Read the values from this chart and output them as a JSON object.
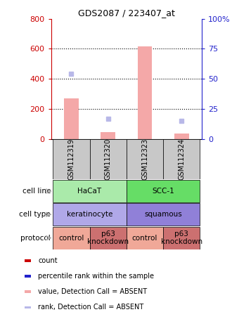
{
  "title": "GDS2087 / 223407_at",
  "samples": [
    "GSM112319",
    "GSM112320",
    "GSM112323",
    "GSM112324"
  ],
  "bar_values": [
    270,
    45,
    615,
    35
  ],
  "rank_values_pct": [
    54,
    17,
    0,
    15
  ],
  "bar_color": "#f4a8a8",
  "rank_color": "#b8b8e8",
  "ylim_left": [
    0,
    800
  ],
  "ylim_right": [
    0,
    100
  ],
  "yticks_left": [
    0,
    200,
    400,
    600,
    800
  ],
  "yticks_right": [
    0,
    25,
    50,
    75,
    100
  ],
  "ytick_labels_left": [
    "0",
    "200",
    "400",
    "600",
    "800"
  ],
  "ytick_labels_right": [
    "0",
    "25",
    "50",
    "75",
    "100%"
  ],
  "left_axis_color": "#cc0000",
  "right_axis_color": "#2222cc",
  "sample_box_color": "#c8c8c8",
  "cell_line_groups": [
    {
      "label": "HaCaT",
      "color": "#aaeaaa",
      "span": [
        0,
        2
      ]
    },
    {
      "label": "SCC-1",
      "color": "#66dd66",
      "span": [
        2,
        4
      ]
    }
  ],
  "cell_type_groups": [
    {
      "label": "keratinocyte",
      "color": "#b0a8e8",
      "span": [
        0,
        2
      ]
    },
    {
      "label": "squamous",
      "color": "#9080d8",
      "span": [
        2,
        4
      ]
    }
  ],
  "protocol_groups": [
    {
      "label": "control",
      "color": "#f0a898",
      "span": [
        0,
        1
      ]
    },
    {
      "label": "p63\nknockdown",
      "color": "#cc7070",
      "span": [
        1,
        2
      ]
    },
    {
      "label": "control",
      "color": "#f0a898",
      "span": [
        2,
        3
      ]
    },
    {
      "label": "p63\nknockdown",
      "color": "#cc7070",
      "span": [
        3,
        4
      ]
    }
  ],
  "legend_items": [
    {
      "color": "#cc0000",
      "label": "count"
    },
    {
      "color": "#2222cc",
      "label": "percentile rank within the sample"
    },
    {
      "color": "#f4a8a8",
      "label": "value, Detection Call = ABSENT"
    },
    {
      "color": "#b8b8e8",
      "label": "rank, Detection Call = ABSENT"
    }
  ],
  "row_labels": [
    "cell line",
    "cell type",
    "protocol"
  ],
  "arrow_color": "#aaaaaa",
  "grid_yticks": [
    200,
    400,
    600
  ],
  "fig_width": 3.3,
  "fig_height": 4.44,
  "dpi": 100
}
